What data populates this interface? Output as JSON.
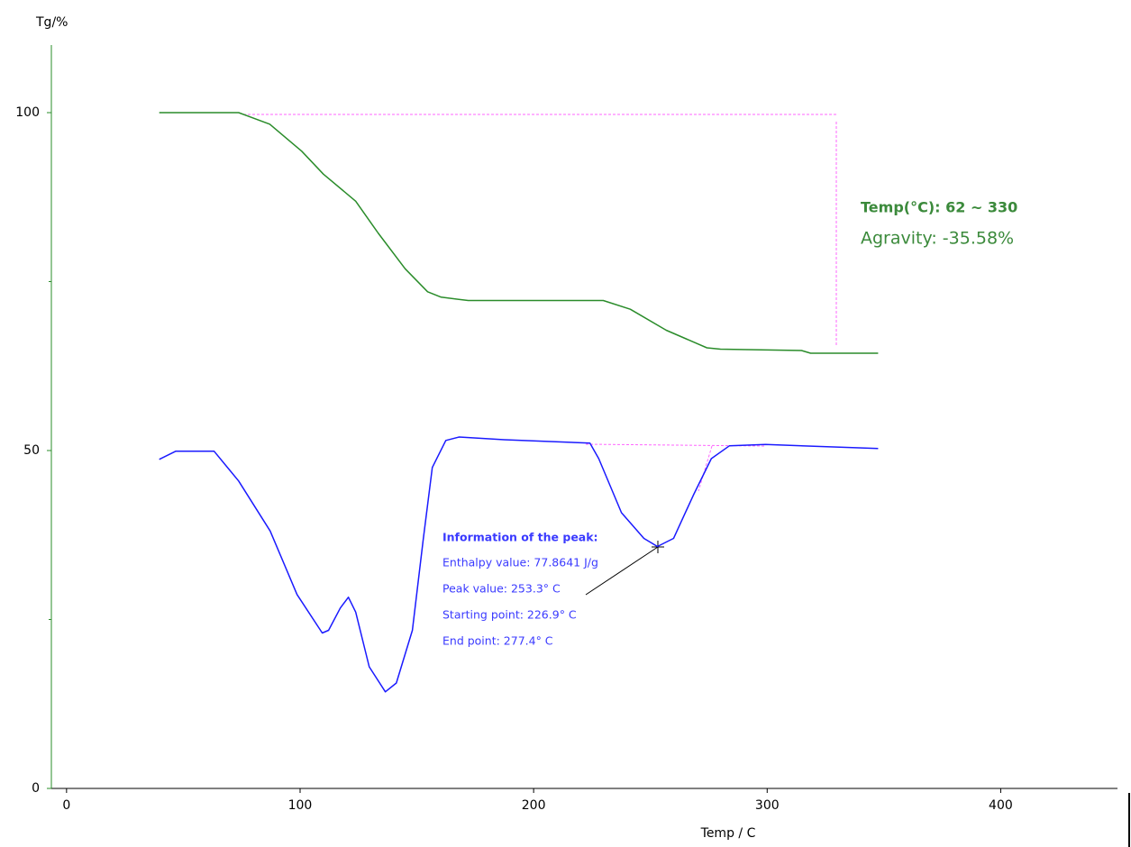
{
  "chart_data": {
    "type": "line",
    "y_label": "Tg/%",
    "x_label": "Temp / C",
    "xlim": [
      -6.5,
      450
    ],
    "xticks": [
      0,
      100,
      200,
      300,
      400
    ],
    "ylim": [
      0,
      110
    ],
    "yticks": [
      0,
      50,
      100
    ],
    "y_minor_ticks": [
      25,
      75
    ],
    "series": [
      {
        "color": "#2a8c2a",
        "x": [
          39.7,
          73.7,
          87,
          100.7,
          110,
          123.8,
          133.4,
          145,
          154.6,
          160.4,
          172,
          229.8,
          241.4,
          256.8,
          274.2,
          280,
          314.7,
          318.6,
          347.5
        ],
        "values": [
          100,
          100,
          98.3,
          94.3,
          90.9,
          86.9,
          82.2,
          76.9,
          73.5,
          72.7,
          72.2,
          72.2,
          70.9,
          67.8,
          65.2,
          65.0,
          64.8,
          64.4,
          64.4
        ]
      },
      {
        "color": "#1a1aff",
        "x": [
          39.7,
          46.7,
          63.2,
          73.7,
          87.2,
          98.7,
          109.5,
          112.2,
          117.2,
          120.7,
          123.8,
          129.6,
          136.5,
          141.2,
          148.1,
          152.7,
          156.6,
          162.4,
          168.1,
          187.4,
          224.1,
          227.9,
          237.6,
          247.2,
          253.0,
          259.9,
          268.4,
          276.1,
          283.8,
          299.3,
          347.5
        ],
        "values": [
          48.7,
          49.9,
          49.9,
          45.5,
          38.1,
          28.7,
          23.0,
          23.4,
          26.7,
          28.3,
          26.1,
          18.0,
          14.3,
          15.6,
          23.4,
          36.8,
          47.5,
          51.5,
          52.0,
          51.6,
          51.1,
          48.8,
          40.8,
          37.0,
          35.8,
          37.0,
          43.4,
          48.8,
          50.7,
          50.9,
          50.3
        ]
      }
    ],
    "annotations": [
      "Temp(°C): 62 ~ 330",
      "Agravity: -35.58%"
    ],
    "peak_info": [
      "Information of the peak:",
      "Enthalpy value: 77.8641 J/g",
      "Peak value: 253.3° C",
      "Starting point: 226.9° C",
      "End point: 277.4° C"
    ]
  }
}
